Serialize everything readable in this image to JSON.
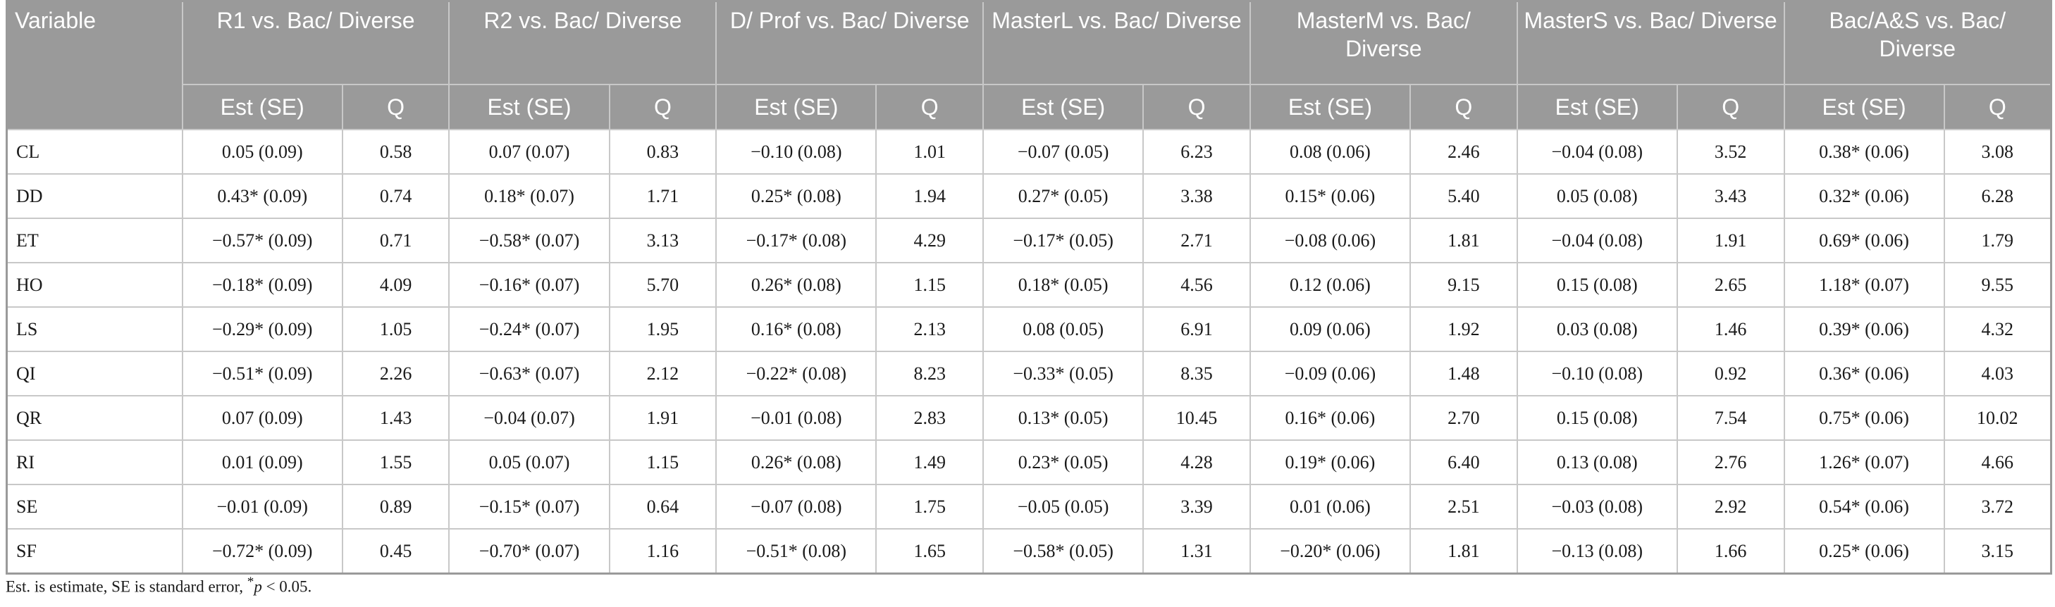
{
  "table": {
    "header_top": [
      "Variable",
      "R1 vs. Bac/ Diverse",
      "R2 vs. Bac/ Diverse",
      "D/ Prof vs. Bac/ Diverse",
      "MasterL vs. Bac/ Diverse",
      "MasterM vs. Bac/ Diverse",
      "MasterS vs. Bac/ Diverse",
      "Bac/A&S vs. Bac/ Diverse"
    ],
    "header_sub": {
      "est": "Est (SE)",
      "q": "Q"
    },
    "rows": [
      [
        "CL",
        "0.05 (0.09)",
        "0.58",
        "0.07 (0.07)",
        "0.83",
        "−0.10 (0.08)",
        "1.01",
        "−0.07 (0.05)",
        "6.23",
        "0.08 (0.06)",
        "2.46",
        "−0.04 (0.08)",
        "3.52",
        "0.38* (0.06)",
        "3.08"
      ],
      [
        "DD",
        "0.43* (0.09)",
        "0.74",
        "0.18* (0.07)",
        "1.71",
        "0.25* (0.08)",
        "1.94",
        "0.27* (0.05)",
        "3.38",
        "0.15* (0.06)",
        "5.40",
        "0.05 (0.08)",
        "3.43",
        "0.32* (0.06)",
        "6.28"
      ],
      [
        "ET",
        "−0.57* (0.09)",
        "0.71",
        "−0.58* (0.07)",
        "3.13",
        "−0.17* (0.08)",
        "4.29",
        "−0.17* (0.05)",
        "2.71",
        "−0.08 (0.06)",
        "1.81",
        "−0.04 (0.08)",
        "1.91",
        "0.69* (0.06)",
        "1.79"
      ],
      [
        "HO",
        "−0.18* (0.09)",
        "4.09",
        "−0.16* (0.07)",
        "5.70",
        "0.26* (0.08)",
        "1.15",
        "0.18* (0.05)",
        "4.56",
        "0.12 (0.06)",
        "9.15",
        "0.15 (0.08)",
        "2.65",
        "1.18* (0.07)",
        "9.55"
      ],
      [
        "LS",
        "−0.29* (0.09)",
        "1.05",
        "−0.24* (0.07)",
        "1.95",
        "0.16* (0.08)",
        "2.13",
        "0.08 (0.05)",
        "6.91",
        "0.09 (0.06)",
        "1.92",
        "0.03 (0.08)",
        "1.46",
        "0.39* (0.06)",
        "4.32"
      ],
      [
        "QI",
        "−0.51* (0.09)",
        "2.26",
        "−0.63* (0.07)",
        "2.12",
        "−0.22* (0.08)",
        "8.23",
        "−0.33* (0.05)",
        "8.35",
        "−0.09 (0.06)",
        "1.48",
        "−0.10 (0.08)",
        "0.92",
        "0.36* (0.06)",
        "4.03"
      ],
      [
        "QR",
        "0.07 (0.09)",
        "1.43",
        "−0.04 (0.07)",
        "1.91",
        "−0.01 (0.08)",
        "2.83",
        "0.13* (0.05)",
        "10.45",
        "0.16* (0.06)",
        "2.70",
        "0.15 (0.08)",
        "7.54",
        "0.75* (0.06)",
        "10.02"
      ],
      [
        "RI",
        "0.01 (0.09)",
        "1.55",
        "0.05 (0.07)",
        "1.15",
        "0.26* (0.08)",
        "1.49",
        "0.23* (0.05)",
        "4.28",
        "0.19* (0.06)",
        "6.40",
        "0.13 (0.08)",
        "2.76",
        "1.26* (0.07)",
        "4.66"
      ],
      [
        "SE",
        "−0.01 (0.09)",
        "0.89",
        "−0.15* (0.07)",
        "0.64",
        "−0.07 (0.08)",
        "1.75",
        "−0.05 (0.05)",
        "3.39",
        "0.01 (0.06)",
        "2.51",
        "−0.03 (0.08)",
        "2.92",
        "0.54* (0.06)",
        "3.72"
      ],
      [
        "SF",
        "−0.72* (0.09)",
        "0.45",
        "−0.70* (0.07)",
        "1.16",
        "−0.51* (0.08)",
        "1.65",
        "−0.58* (0.05)",
        "1.31",
        "−0.20* (0.06)",
        "1.81",
        "−0.13 (0.08)",
        "1.66",
        "0.25* (0.06)",
        "3.15"
      ]
    ]
  },
  "footnote": {
    "text_before": "Est. is estimate, SE is standard error, ",
    "sig_symbol": "*",
    "p_letter": "p",
    "text_after": " < 0.05."
  },
  "colors": {
    "header_bg": "#9a9a9a",
    "header_text": "#ffffff",
    "grid": "#c8c8c8"
  }
}
